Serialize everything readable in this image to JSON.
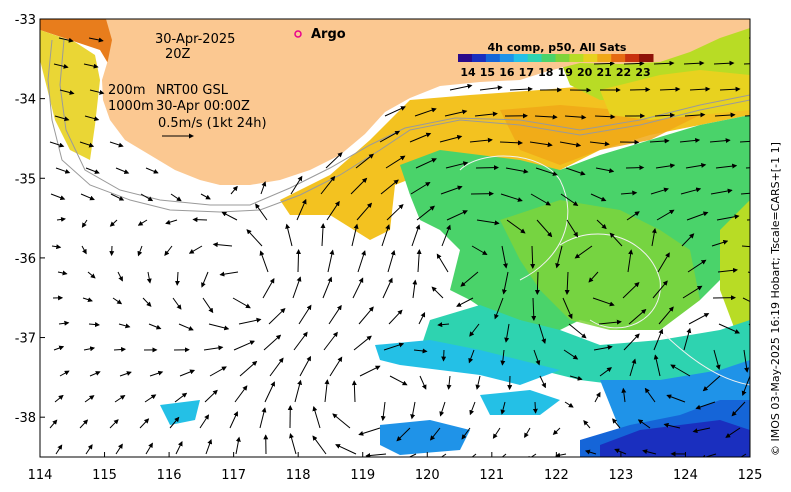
{
  "map": {
    "x_ticks": [
      "114",
      "115",
      "116",
      "117",
      "118",
      "119",
      "120",
      "121",
      "122",
      "123",
      "124",
      "125"
    ],
    "y_ticks": [
      "-33",
      "-34",
      "-35",
      "-36",
      "-37",
      "-38"
    ],
    "lon_range": [
      114,
      125
    ],
    "lat_range": [
      -38.5,
      -33
    ],
    "date": "30-Apr-2025",
    "time": "20Z",
    "argo_label": "Argo",
    "isobaths_label_1": "200m",
    "isobaths_label_2": "1000m",
    "current_source": "NRT00 GSL",
    "current_time": "30-Apr 00:00Z",
    "scale_arrow_label": "0.5m/s (1kt 24h)",
    "credit": "© IMOS 03-May-2025 16:19 Hobart; Tscale=CARS+[-1 1]"
  },
  "colorbar": {
    "title": "4h comp, p50, All Sats",
    "ticks": [
      "14",
      "15",
      "16",
      "17",
      "18",
      "19",
      "20",
      "21",
      "22",
      "23"
    ],
    "colors": [
      "#2a0a8a",
      "#1a2fbf",
      "#1565d8",
      "#1f93e8",
      "#24c0e6",
      "#2ed3b0",
      "#4ad36a",
      "#7ed33a",
      "#b8dc25",
      "#e8d21f",
      "#f0a818",
      "#e56a12",
      "#c8300e",
      "#8e1208"
    ]
  },
  "colors": {
    "land": "#fbc891",
    "sea": "#ffffff",
    "argo_marker": "#e8008c"
  }
}
